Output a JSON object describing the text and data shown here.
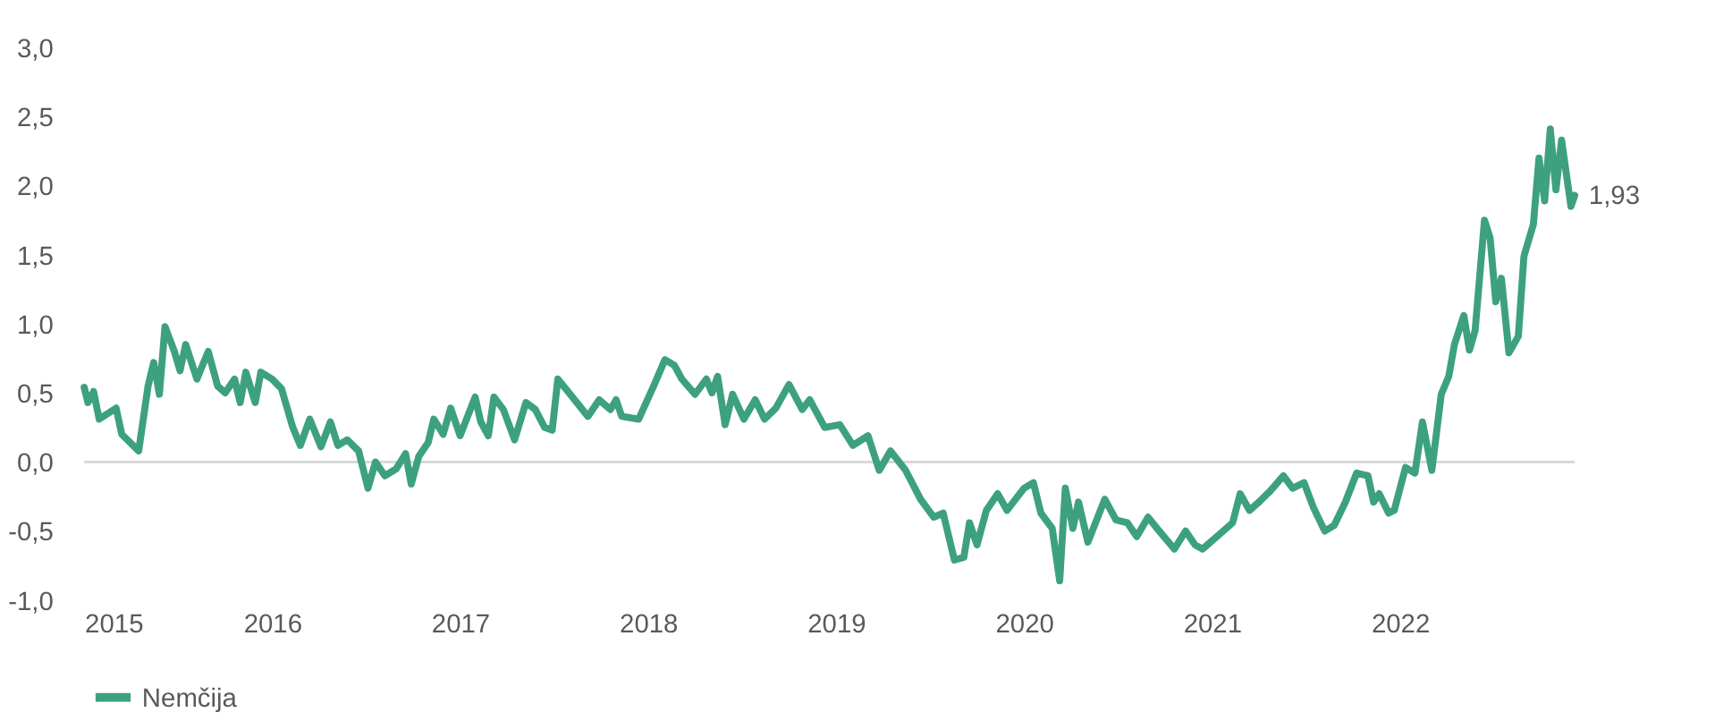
{
  "chart_data": {
    "type": "line",
    "x": [
      2015.0,
      2015.02,
      2015.05,
      2015.08,
      2015.17,
      2015.2,
      2015.29,
      2015.34,
      2015.37,
      2015.4,
      2015.43,
      2015.48,
      2015.51,
      2015.54,
      2015.6,
      2015.66,
      2015.71,
      2015.75,
      2015.8,
      2015.83,
      2015.86,
      2015.91,
      2015.94,
      2016.0,
      2016.05,
      2016.11,
      2016.15,
      2016.2,
      2016.26,
      2016.31,
      2016.35,
      2016.4,
      2016.46,
      2016.51,
      2016.55,
      2016.6,
      2016.66,
      2016.71,
      2016.74,
      2016.78,
      2016.83,
      2016.86,
      2016.91,
      2016.95,
      2017.0,
      2017.08,
      2017.11,
      2017.15,
      2017.18,
      2017.23,
      2017.29,
      2017.35,
      2017.4,
      2017.45,
      2017.49,
      2017.52,
      2017.58,
      2017.68,
      2017.74,
      2017.8,
      2017.83,
      2017.86,
      2017.95,
      2018.03,
      2018.09,
      2018.14,
      2018.18,
      2018.25,
      2018.31,
      2018.34,
      2018.37,
      2018.41,
      2018.45,
      2018.51,
      2018.57,
      2018.62,
      2018.68,
      2018.75,
      2018.82,
      2018.86,
      2018.94,
      2019.02,
      2019.09,
      2019.17,
      2019.23,
      2019.29,
      2019.37,
      2019.45,
      2019.52,
      2019.57,
      2019.63,
      2019.68,
      2019.71,
      2019.75,
      2019.8,
      2019.86,
      2019.91,
      2020.0,
      2020.05,
      2020.09,
      2020.15,
      2020.19,
      2020.22,
      2020.26,
      2020.29,
      2020.34,
      2020.43,
      2020.49,
      2020.55,
      2020.6,
      2020.66,
      2020.72,
      2020.8,
      2020.86,
      2020.91,
      2020.95,
      2021.06,
      2021.11,
      2021.15,
      2021.2,
      2021.25,
      2021.31,
      2021.38,
      2021.43,
      2021.49,
      2021.54,
      2021.6,
      2021.65,
      2021.71,
      2021.77,
      2021.83,
      2021.86,
      2021.89,
      2021.94,
      2021.97,
      2022.03,
      2022.08,
      2022.12,
      2022.17,
      2022.22,
      2022.26,
      2022.29,
      2022.34,
      2022.37,
      2022.4,
      2022.45,
      2022.48,
      2022.51,
      2022.54,
      2022.58,
      2022.63,
      2022.66,
      2022.71,
      2022.74,
      2022.77,
      2022.8,
      2022.83,
      2022.86,
      2022.91,
      2022.93
    ],
    "series": [
      {
        "name": "Nemčija",
        "color": "#3da17e",
        "values": [
          0.54,
          0.43,
          0.51,
          0.31,
          0.39,
          0.2,
          0.08,
          0.55,
          0.72,
          0.49,
          0.98,
          0.8,
          0.66,
          0.85,
          0.6,
          0.8,
          0.55,
          0.5,
          0.6,
          0.43,
          0.65,
          0.43,
          0.65,
          0.6,
          0.53,
          0.25,
          0.12,
          0.31,
          0.11,
          0.29,
          0.12,
          0.16,
          0.08,
          -0.19,
          0.0,
          -0.1,
          -0.05,
          0.06,
          -0.16,
          0.04,
          0.14,
          0.31,
          0.2,
          0.39,
          0.19,
          0.47,
          0.29,
          0.19,
          0.47,
          0.38,
          0.16,
          0.43,
          0.38,
          0.25,
          0.23,
          0.6,
          0.5,
          0.33,
          0.45,
          0.38,
          0.45,
          0.33,
          0.31,
          0.55,
          0.74,
          0.7,
          0.6,
          0.49,
          0.6,
          0.5,
          0.62,
          0.27,
          0.49,
          0.31,
          0.45,
          0.31,
          0.39,
          0.56,
          0.38,
          0.45,
          0.25,
          0.27,
          0.12,
          0.19,
          -0.06,
          0.08,
          -0.06,
          -0.27,
          -0.4,
          -0.37,
          -0.71,
          -0.69,
          -0.44,
          -0.6,
          -0.35,
          -0.23,
          -0.35,
          -0.19,
          -0.15,
          -0.37,
          -0.48,
          -0.86,
          -0.19,
          -0.48,
          -0.29,
          -0.58,
          -0.27,
          -0.42,
          -0.44,
          -0.54,
          -0.4,
          -0.5,
          -0.63,
          -0.5,
          -0.6,
          -0.63,
          -0.5,
          -0.44,
          -0.23,
          -0.35,
          -0.29,
          -0.21,
          -0.1,
          -0.19,
          -0.15,
          -0.33,
          -0.5,
          -0.46,
          -0.29,
          -0.08,
          -0.1,
          -0.29,
          -0.23,
          -0.37,
          -0.35,
          -0.04,
          -0.08,
          0.29,
          -0.06,
          0.49,
          0.62,
          0.85,
          1.06,
          0.81,
          0.95,
          1.75,
          1.62,
          1.16,
          1.33,
          0.79,
          0.91,
          1.49,
          1.72,
          2.2,
          1.89,
          2.41,
          1.97,
          2.33,
          1.85,
          1.93
        ]
      }
    ],
    "xlim": [
      2015,
      2022.93
    ],
    "xticks": [
      2015,
      2016,
      2017,
      2018,
      2019,
      2020,
      2021,
      2022
    ],
    "ylim": [
      -1.0,
      3.0
    ],
    "yticks": [
      {
        "value": -1.0,
        "label": "-1,0"
      },
      {
        "value": -0.5,
        "label": "-0,5"
      },
      {
        "value": 0.0,
        "label": "0,0"
      },
      {
        "value": 0.5,
        "label": "0,5"
      },
      {
        "value": 1.0,
        "label": "1,0"
      },
      {
        "value": 1.5,
        "label": "1,5"
      },
      {
        "value": 2.0,
        "label": "2,0"
      },
      {
        "value": 2.5,
        "label": "2,5"
      },
      {
        "value": 3.0,
        "label": "3,0"
      }
    ],
    "ref_lines": [
      {
        "axis": "y",
        "value": 0.0,
        "color": "#d9d9d9"
      }
    ],
    "annotations": [
      {
        "text": "1,93",
        "x": 2022.93,
        "y": 1.93
      }
    ],
    "grid": false,
    "legend": "bottom"
  }
}
